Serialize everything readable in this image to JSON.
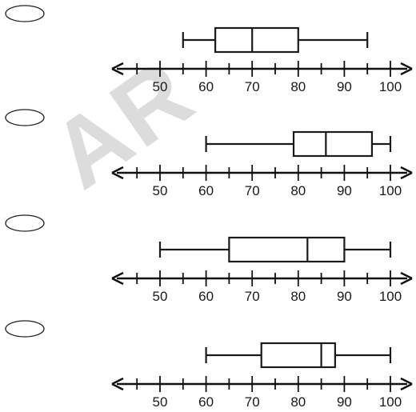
{
  "chart_data": {
    "type": "boxplot",
    "axis": {
      "min": 45,
      "max": 100,
      "major_ticks": [
        50,
        60,
        70,
        80,
        90,
        100
      ],
      "minor_ticks": [
        45,
        55,
        65,
        75,
        85,
        95
      ],
      "tick_labels": [
        "50",
        "60",
        "70",
        "80",
        "90",
        "100"
      ]
    },
    "plots": [
      {
        "min": 55,
        "q1": 62,
        "median": 70,
        "q3": 80,
        "max": 95
      },
      {
        "min": 60,
        "q1": 79,
        "median": 86,
        "q3": 96,
        "max": 100
      },
      {
        "min": 50,
        "q1": 65,
        "median": 82,
        "q3": 90,
        "max": 100
      },
      {
        "min": 60,
        "q1": 72,
        "median": 85,
        "q3": 88,
        "max": 100
      }
    ],
    "answer_choice_marker": "radio-oval"
  },
  "watermark": {
    "text": "AR"
  }
}
